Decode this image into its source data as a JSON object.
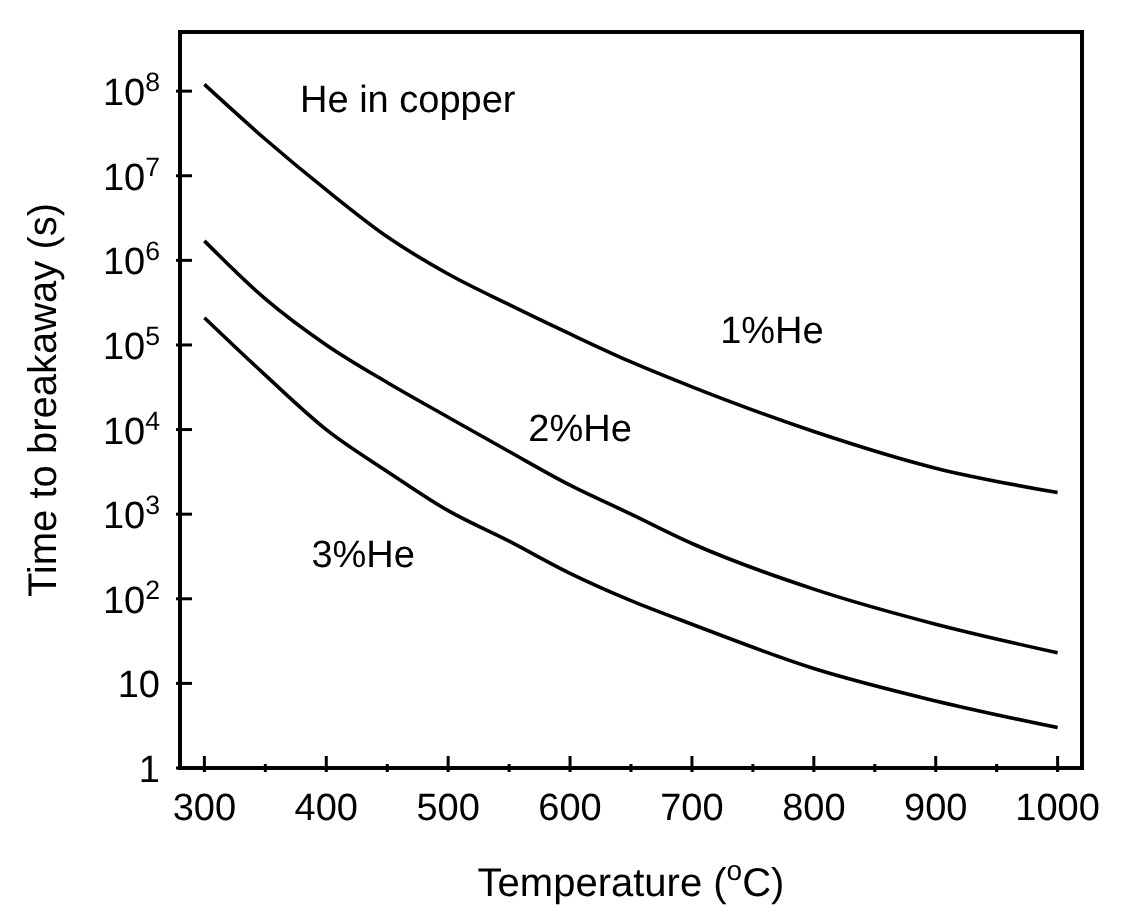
{
  "chart_data": {
    "type": "line",
    "xlabel": "Temperature ($^{o}$C)",
    "ylabel": "Time to breakaway (s)",
    "annotations": [
      "He in copper"
    ],
    "x": [
      300,
      350,
      400,
      450,
      500,
      550,
      600,
      650,
      700,
      800,
      900,
      1000
    ],
    "series": [
      {
        "name": "1%He",
        "color": "#000000",
        "values": [
          120000000,
          27000000,
          6800000,
          1900000,
          690000,
          300000,
          135000,
          63000,
          32000,
          9500,
          3500,
          1800
        ]
      },
      {
        "name": "2%He",
        "color": "#000000",
        "values": [
          1700000,
          350000,
          100000,
          36000,
          14000,
          5500,
          2200,
          1000,
          450,
          130,
          50,
          23
        ]
      },
      {
        "name": "3%He",
        "color": "#000000",
        "values": [
          210000,
          44000,
          10000,
          3200,
          1100,
          480,
          200,
          95,
          50,
          15,
          6.2,
          3
        ]
      }
    ],
    "log": "y",
    "xlim": [
      280,
      1020
    ],
    "ylim": [
      1,
      500000000
    ],
    "xticks": [
      300,
      {
        "value": 350,
        "label": null
      },
      400,
      {
        "value": 450,
        "label": null
      },
      500,
      {
        "value": 550,
        "label": null
      },
      600,
      {
        "value": 650,
        "label": null
      },
      700,
      {
        "value": 750,
        "label": null
      },
      800,
      {
        "value": 850,
        "label": null
      },
      900,
      {
        "value": 950,
        "label": null
      },
      1000
    ],
    "yticks": [
      1,
      10,
      {
        "value": 100,
        "label": "10$^{2}$"
      },
      {
        "value": 1000,
        "label": "10$^{3}$"
      },
      {
        "value": 10000,
        "label": "10$^{4}$"
      },
      {
        "value": 100000,
        "label": "10$^{5}$"
      },
      {
        "value": 1000000,
        "label": "10$^{6}$"
      },
      {
        "value": 10000000,
        "label": "10$^{7}$"
      },
      {
        "value": 100000000,
        "label": "10$^{8}$"
      }
    ],
    "marker": "none",
    "line_style": "solid"
  }
}
